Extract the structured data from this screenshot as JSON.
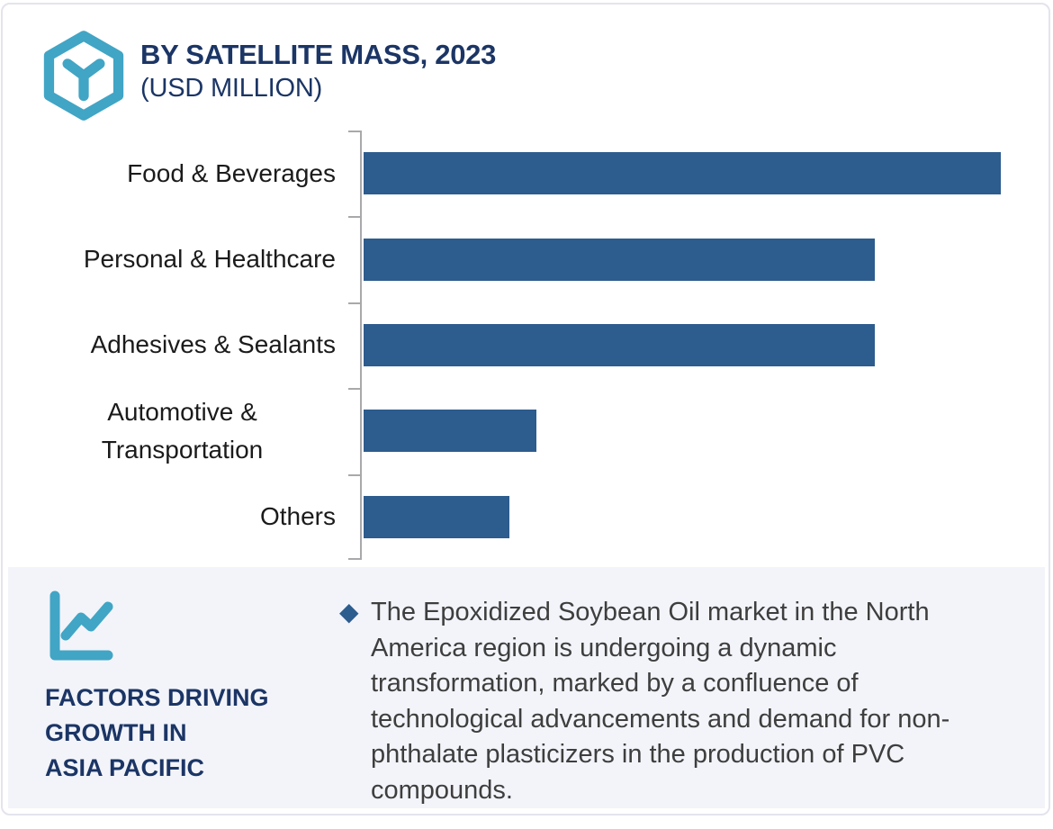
{
  "header": {
    "title_line1": "BY SATELLITE MASS, 2023",
    "title_line2": "(USD MILLION)",
    "logo_icon": "hexagon-y-logo",
    "title_color": "#1b3565"
  },
  "chart_data": {
    "type": "bar",
    "orientation": "horizontal",
    "title": "BY SATELLITE MASS, 2023 (USD MILLION)",
    "categories": [
      "Food & Beverages",
      "Personal & Healthcare",
      "Adhesives & Sealants",
      "Automotive & Transportation",
      "Others"
    ],
    "values": [
      96,
      77,
      77,
      26,
      22
    ],
    "xlim": [
      0,
      100
    ],
    "x_axis_labels_shown": false,
    "grid": false,
    "bar_color": "#2d5c8e",
    "axis_color": "#a9a9ab",
    "label_color": "#1b1b1b"
  },
  "footer": {
    "icon": "line-chart-icon",
    "heading": "FACTORS DRIVING\nGROWTH IN\nASIA PACIFIC",
    "bullet_icon": "diamond-bullet",
    "bullet_glyph": "◆",
    "insight_text": "The Epoxidized Soybean Oil market in the North America region is undergoing a dynamic transformation, marked by a confluence of technological advancements and demand for non-phthalate plasticizers in the production of PVC compounds.",
    "panel_color": "#f2f4f9"
  },
  "colors": {
    "navy": "#1b3565",
    "teal": "#41a5c5",
    "bar_blue": "#2d5c8e",
    "card_border": "#e3e4ec",
    "body_text": "#3e3e3e"
  }
}
